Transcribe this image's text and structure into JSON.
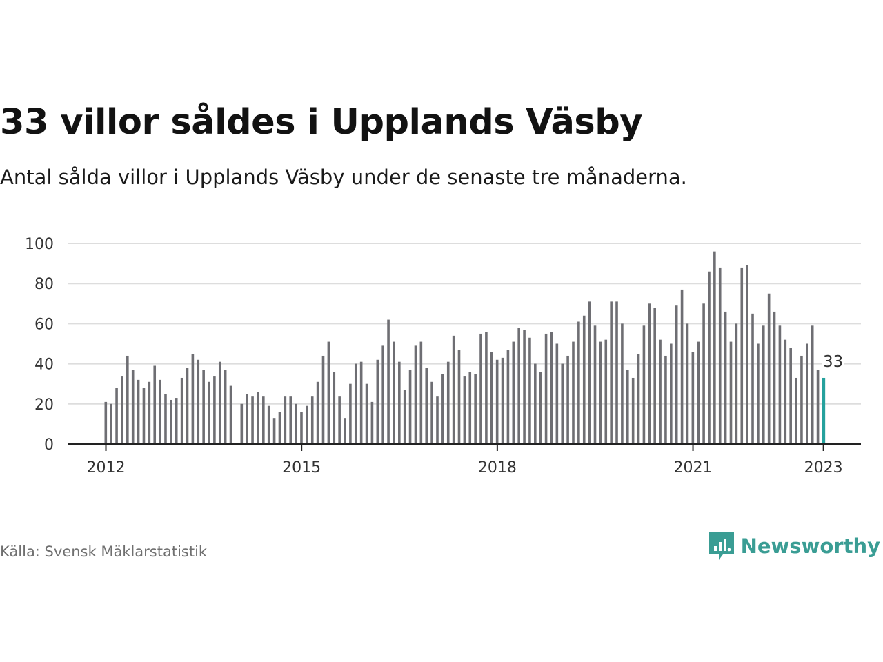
{
  "title": "33 villor såldes i Upplands Väsby",
  "subtitle": "Antal sålda villor i Upplands Väsby under de senaste tre månaderna.",
  "source": "Källa: Svensk Mäklarstatistik",
  "brand": "Newsworthy",
  "colors": {
    "bar": "#6e6e73",
    "highlight": "#25a19d",
    "grid": "#dddddd",
    "brand": "#3a9d94"
  },
  "chart_data": {
    "type": "bar",
    "ylim": [
      0,
      100
    ],
    "yticks": [
      0,
      20,
      40,
      60,
      80,
      100
    ],
    "xticks": [
      {
        "label": "2012",
        "index": 0
      },
      {
        "label": "2015",
        "index": 36
      },
      {
        "label": "2018",
        "index": 72
      },
      {
        "label": "2021",
        "index": 108
      },
      {
        "label": "2023",
        "index": 132
      }
    ],
    "x": [
      "2012-01",
      "2012-02",
      "2012-03",
      "2012-04",
      "2012-05",
      "2012-06",
      "2012-07",
      "2012-08",
      "2012-09",
      "2012-10",
      "2012-11",
      "2012-12",
      "2013-01",
      "2013-02",
      "2013-03",
      "2013-04",
      "2013-05",
      "2013-06",
      "2013-07",
      "2013-08",
      "2013-09",
      "2013-10",
      "2013-11",
      "2013-12",
      "2014-01",
      "2014-02",
      "2014-03",
      "2014-04",
      "2014-05",
      "2014-06",
      "2014-07",
      "2014-08",
      "2014-09",
      "2014-10",
      "2014-11",
      "2014-12",
      "2015-01",
      "2015-02",
      "2015-03",
      "2015-04",
      "2015-05",
      "2015-06",
      "2015-07",
      "2015-08",
      "2015-09",
      "2015-10",
      "2015-11",
      "2015-12",
      "2016-01",
      "2016-02",
      "2016-03",
      "2016-04",
      "2016-05",
      "2016-06",
      "2016-07",
      "2016-08",
      "2016-09",
      "2016-10",
      "2016-11",
      "2016-12",
      "2017-01",
      "2017-02",
      "2017-03",
      "2017-04",
      "2017-05",
      "2017-06",
      "2017-07",
      "2017-08",
      "2017-09",
      "2017-10",
      "2017-11",
      "2017-12",
      "2018-01",
      "2018-02",
      "2018-03",
      "2018-04",
      "2018-05",
      "2018-06",
      "2018-07",
      "2018-08",
      "2018-09",
      "2018-10",
      "2018-11",
      "2018-12",
      "2019-01",
      "2019-02",
      "2019-03",
      "2019-04",
      "2019-05",
      "2019-06",
      "2019-07",
      "2019-08",
      "2019-09",
      "2019-10",
      "2019-11",
      "2019-12",
      "2020-01",
      "2020-02",
      "2020-03",
      "2020-04",
      "2020-05",
      "2020-06",
      "2020-07",
      "2020-08",
      "2020-09",
      "2020-10",
      "2020-11",
      "2020-12",
      "2021-01",
      "2021-02",
      "2021-03",
      "2021-04",
      "2021-05",
      "2021-06",
      "2021-07",
      "2021-08",
      "2021-09",
      "2021-10",
      "2021-11",
      "2021-12",
      "2022-01",
      "2022-02",
      "2022-03",
      "2022-04",
      "2022-05",
      "2022-06",
      "2022-07",
      "2022-08",
      "2022-09",
      "2022-10",
      "2022-11",
      "2022-12",
      "2023-01"
    ],
    "values": [
      21,
      20,
      28,
      34,
      44,
      37,
      32,
      28,
      31,
      39,
      32,
      25,
      22,
      23,
      33,
      38,
      45,
      42,
      37,
      31,
      34,
      41,
      37,
      29,
      null,
      20,
      25,
      24,
      26,
      24,
      19,
      13,
      16,
      24,
      24,
      20,
      16,
      19,
      24,
      31,
      44,
      51,
      36,
      24,
      13,
      30,
      40,
      41,
      30,
      21,
      42,
      49,
      62,
      51,
      41,
      27,
      37,
      49,
      51,
      38,
      31,
      24,
      35,
      41,
      54,
      47,
      34,
      36,
      35,
      55,
      56,
      46,
      42,
      43,
      47,
      51,
      58,
      57,
      53,
      40,
      36,
      55,
      56,
      50,
      40,
      44,
      51,
      61,
      64,
      71,
      59,
      51,
      52,
      71,
      71,
      60,
      37,
      33,
      45,
      59,
      70,
      68,
      52,
      44,
      50,
      69,
      77,
      60,
      46,
      51,
      70,
      86,
      96,
      88,
      66,
      51,
      60,
      88,
      89,
      65,
      50,
      59,
      75,
      66,
      59,
      52,
      48,
      33,
      44,
      50,
      59,
      37,
      33
    ],
    "highlight_index": 132,
    "highlight_label": "33"
  }
}
